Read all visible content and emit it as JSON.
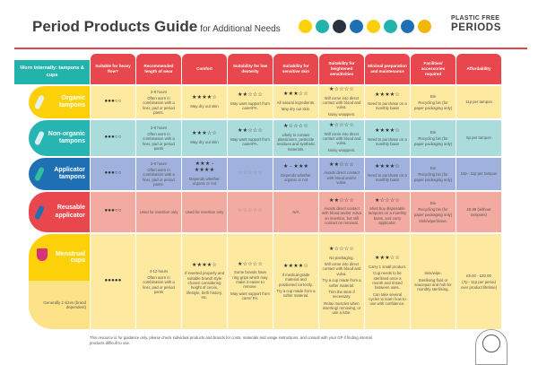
{
  "header": {
    "title": "Period Products Guide",
    "subtitle": "for Additional Needs",
    "brand_line1": "PLASTIC FREE",
    "brand_line2": "PERIODS",
    "icon_colors": [
      "#fdd10a",
      "#23b3ad",
      "#2a3340",
      "#1f6fb5",
      "#fdd10a",
      "#23b3ad",
      "#1f6fb5",
      "#f2b705"
    ]
  },
  "columns": {
    "section_label": "Worn internally: tampons & cups",
    "headers": [
      "Suitable for heavy flow?",
      "Recommended length of wear",
      "Comfort",
      "Suitability for low dexterity",
      "Suitability for sensitive skin",
      "Suitability for heightened sensitivities",
      "Minimal preparation and maintenance",
      "Facilities/ accessories required",
      "Affordability"
    ]
  },
  "colors": {
    "header_red": "#e8484d",
    "header_teal": "#23b3ad"
  },
  "rows": [
    {
      "label": "Organic tampons",
      "tab_color": "#fdd10a",
      "cell_color": "#fde9a0",
      "icon_color": "#e9f0f5",
      "cells": [
        {
          "drops": 3,
          "texts": []
        },
        {
          "texts": [
            "3-8 hours",
            "Often worn in combination with a liner, pad or period pants."
          ]
        },
        {
          "stars": 4,
          "texts": [
            "May dry out skin"
          ]
        },
        {
          "stars": 2,
          "texts": [
            "May want support from carer/PA."
          ]
        },
        {
          "stars": 3,
          "texts": [
            "All natural ingredients.",
            "May dry out skin."
          ]
        },
        {
          "stars": 1,
          "texts": [
            "Will come into direct contact with blood and vulva.",
            "Noisy wrappers."
          ]
        },
        {
          "stars": 4,
          "texts": [
            "Need to purchase on a monthly basis"
          ]
        },
        {
          "texts": [
            "Bin",
            "Recycling bin (for paper packaging only)"
          ]
        },
        {
          "texts": [
            "11p per tampon"
          ]
        }
      ]
    },
    {
      "label": "Non-organic tampons",
      "tab_color": "#26b5b0",
      "cell_color": "#a9dcda",
      "icon_color": "#d9eef5",
      "cells": [
        {
          "drops": 3,
          "texts": []
        },
        {
          "texts": [
            "3-8 hours",
            "Often worn in combination with a liner, pad or period pants"
          ]
        },
        {
          "stars": 3,
          "texts": [
            "May dry out skin"
          ]
        },
        {
          "stars": 2,
          "texts": [
            "May want support from carer/PA."
          ]
        },
        {
          "stars": 1,
          "texts": [
            "Likely to contain plasticisers, pesticide residues and synthetic materials."
          ]
        },
        {
          "stars": 1,
          "texts": [
            "Will come into direct contact with blood and vulva.",
            "Noisy wrappers."
          ]
        },
        {
          "stars": 4,
          "texts": [
            "Need to purchase on a monthly basis"
          ]
        },
        {
          "texts": [
            "Bin",
            "Recycling bin (for paper packaging only)"
          ]
        },
        {
          "texts": [
            "5p per tampon"
          ]
        }
      ]
    },
    {
      "label": "Applicator tampons",
      "tab_color": "#1f6fb5",
      "cell_color": "#9fb1dc",
      "icon_color": "#2fc0a0",
      "cells": [
        {
          "drops": 3,
          "texts": []
        },
        {
          "texts": [
            "3-8 hours",
            "Often worn in combination with a liner, pad or period pants."
          ]
        },
        {
          "star_range": [
            3,
            4
          ],
          "texts": [
            "Depends whether organic or not"
          ]
        },
        {
          "stars": 0,
          "texts": []
        },
        {
          "star_range": [
            1,
            3
          ],
          "texts": [
            "Depends whether organic or not"
          ]
        },
        {
          "stars": 2,
          "texts": [
            "Avoids direct contact with blood and/or vulva."
          ]
        },
        {
          "stars": 4,
          "texts": [
            "Need to purchase on a monthly basis"
          ]
        },
        {
          "texts": [
            "Bin",
            "Recycling bin (for paper packaging only)"
          ]
        },
        {
          "texts": [
            "10p - 11p per tampon"
          ]
        }
      ]
    },
    {
      "label": "Reusable applicator",
      "tab_color": "#e8484d",
      "cell_color": "#f3aaa0",
      "icon_color": "#1f6fb5",
      "cells": [
        {
          "drops": 3,
          "texts": []
        },
        {
          "texts": [
            "Used for insertion only"
          ]
        },
        {
          "texts": [
            "Used for insertion only"
          ]
        },
        {
          "stars": 0,
          "texts": []
        },
        {
          "texts": [
            "N/A"
          ]
        },
        {
          "stars": 2,
          "texts": [
            "Avoids direct contact with blood and/or vulva on insertion, but still contact on removal."
          ]
        },
        {
          "stars": 1,
          "texts": [
            "Must buy disposable tampons on a monthly basis, and carry applicator."
          ]
        },
        {
          "texts": [
            "Bin",
            "Recycling bin (for paper packaging only)",
            "Sink/wipe/tissue."
          ]
        },
        {
          "texts": [
            "£9.99 (without tampons)"
          ]
        }
      ]
    }
  ],
  "cups": {
    "label": "Menstrual cups",
    "sublabel": "Generally 2 sizes (brand dependent)",
    "icon_color": "#d6337a",
    "cell_color": "#fde9a0",
    "cells": [
      {
        "drops": 5,
        "texts": []
      },
      {
        "texts": [
          "4-12 hours",
          "Often worn in combination with a liner, pad or period pants"
        ]
      },
      {
        "stars": 4,
        "texts": [
          "If inserted properly and suitable brand/ style chosen considering height of cervix, lifestyle, birth history, etc."
        ]
      },
      {
        "stars": 1,
        "texts": [
          "Some brands have ring grips which may make it easier to remove.",
          "May want support from carer/ PA."
        ]
      },
      {
        "stars": 4,
        "texts": [
          "If medical-grade material and positioned correctly.",
          "Try a cup made from a softer material."
        ]
      },
      {
        "stars": 1,
        "texts": [
          "No packaging.",
          "Will come into direct contact with blood and vulva.",
          "Try a cup made from a softer material.",
          "Trim the stem if necessary.",
          "Relax muscles when inserting/ removing, or use a lube."
        ]
      },
      {
        "stars": 3,
        "texts": [
          "Carry 1 small product.",
          "Cup needs to be sterilised once a month and rinsed between uses.",
          "Can take several cycles to learn how to use with confidence."
        ]
      },
      {
        "texts": [
          "Sink/wipe.",
          "Sterilising fluid or saucepan and hob for monthly sterilising."
        ]
      },
      {
        "texts": [
          "£9.00 - £20.00",
          "(7p - 11p per period over product lifetime)"
        ]
      }
    ]
  },
  "footer": {
    "text": "This resource is for guidance only, please check individual products and brands for costs, materials and usage instructions, and consult with your GP if finding internal products difficult to use."
  }
}
